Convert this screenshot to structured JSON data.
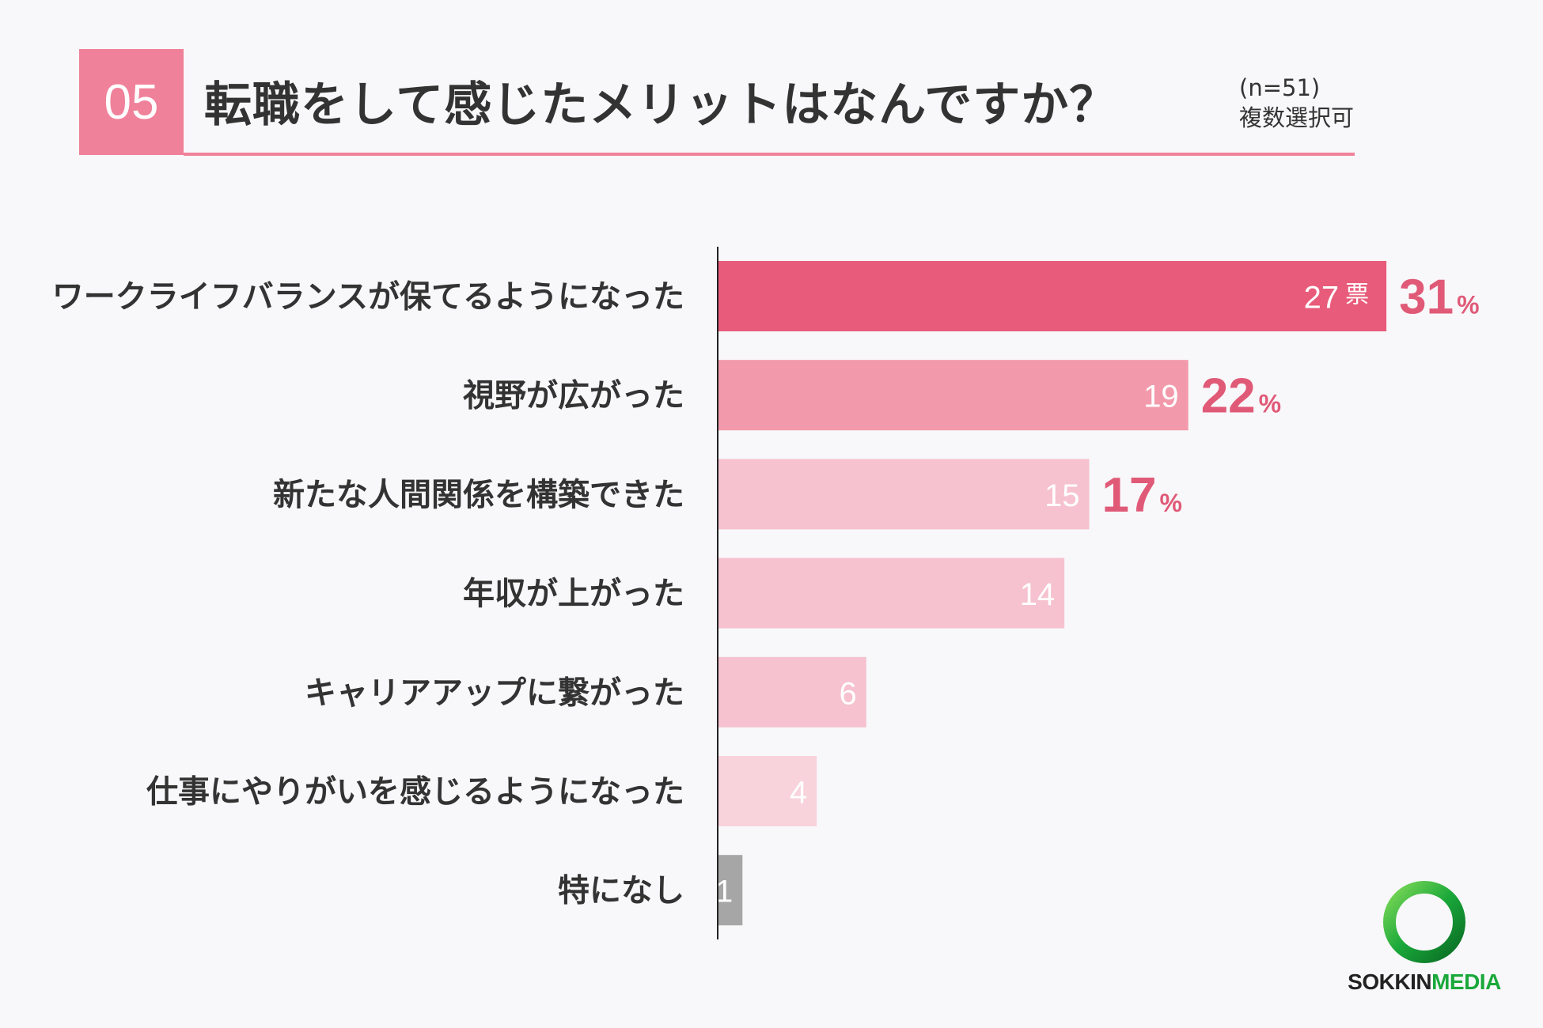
{
  "header": {
    "number": "05",
    "title": "転職をして感じたメリットはなんですか？",
    "sample_size": "(n=51)",
    "multiple_choice": "複数選択可"
  },
  "chart_data": {
    "type": "bar",
    "orientation": "horizontal",
    "categories": [
      "ワークライフバランスが保てるようになった",
      "視野が広がった",
      "新たな人間関係を構築できた",
      "年収が上がった",
      "キャリアアップに繋がった",
      "仕事にやりがいを感じるようになった",
      "特になし"
    ],
    "values": [
      27,
      19,
      15,
      14,
      6,
      4,
      1
    ],
    "value_unit": "票",
    "percentages": [
      {
        "value": "31",
        "symbol": "%"
      },
      {
        "value": "22",
        "symbol": "%"
      },
      {
        "value": "17",
        "symbol": "%"
      }
    ],
    "bar_colors": [
      "#e85b7a",
      "#f29aab",
      "#f6c2cf",
      "#f6c2cf",
      "#f6c2cf",
      "#f8d3dc",
      "#a6a6a6"
    ],
    "percent_color": "#e05a78"
  },
  "logo": {
    "text_a": "SOKKIN",
    "text_b": "MEDIA",
    "ring_color": "#1aa83a"
  }
}
